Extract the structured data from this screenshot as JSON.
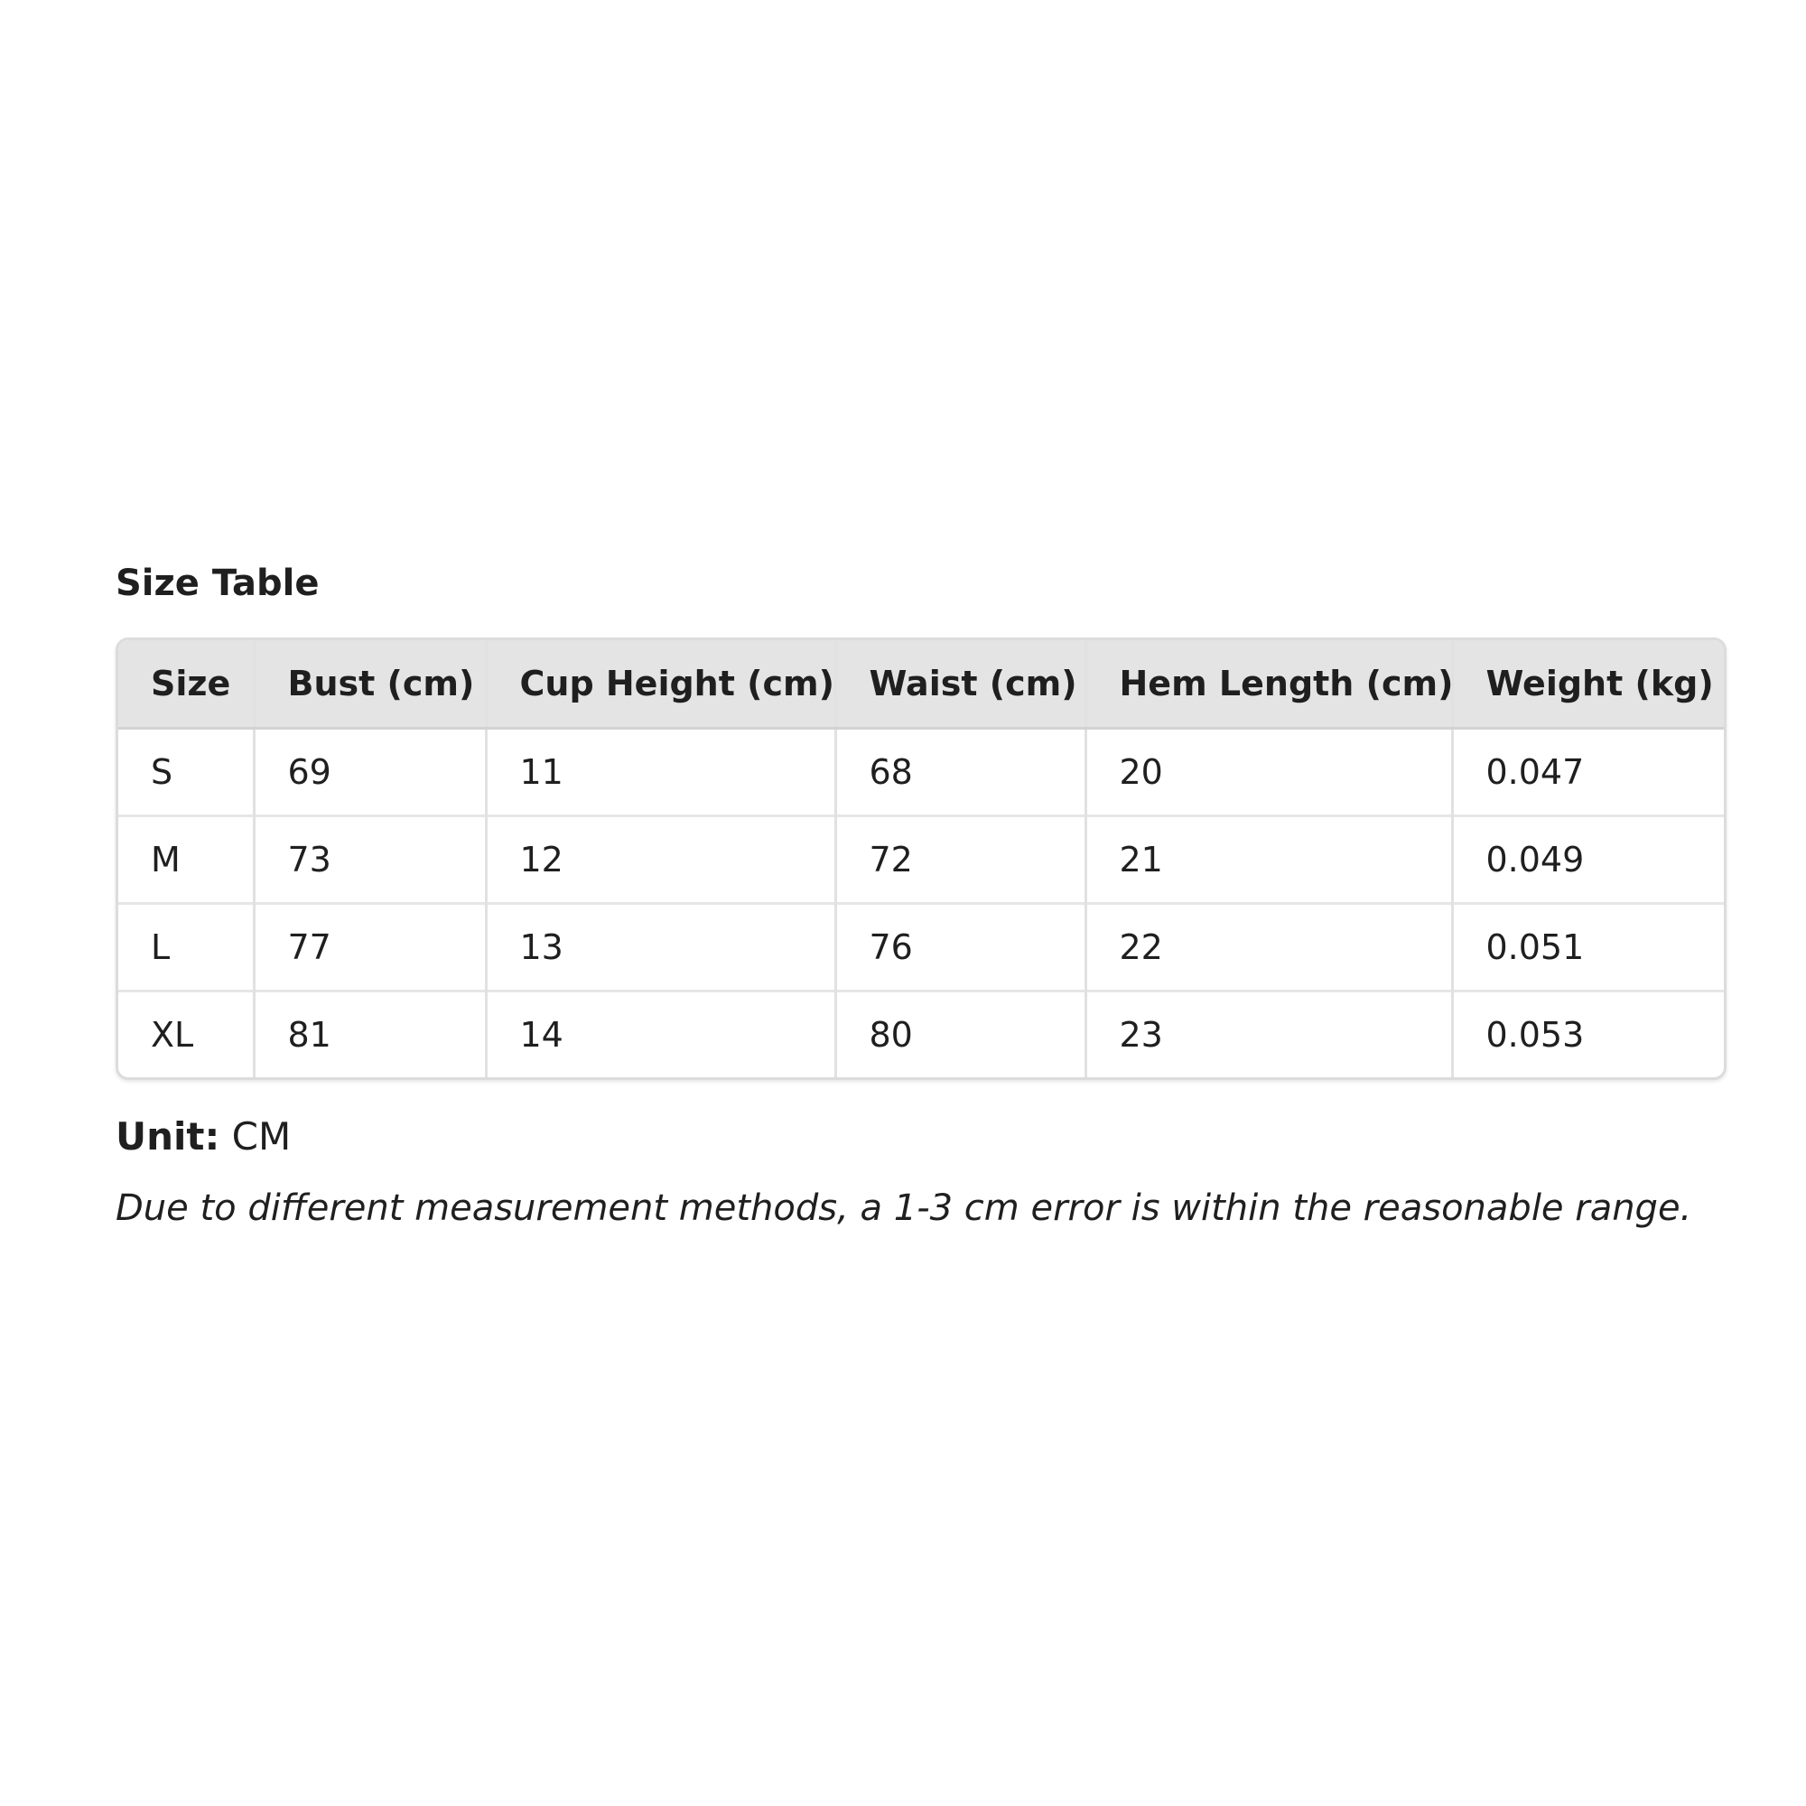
{
  "title": "Size Table",
  "table": {
    "headers": [
      "Size",
      "Bust (cm)",
      "Cup Height (cm)",
      "Waist (cm)",
      "Hem Length (cm)",
      "Weight (kg)"
    ],
    "rows": [
      [
        "S",
        "69",
        "11",
        "68",
        "20",
        "0.047"
      ],
      [
        "M",
        "73",
        "12",
        "72",
        "21",
        "0.049"
      ],
      [
        "L",
        "77",
        "13",
        "76",
        "22",
        "0.051"
      ],
      [
        "XL",
        "81",
        "14",
        "80",
        "23",
        "0.053"
      ]
    ]
  },
  "unit": {
    "label": "Unit:",
    "value": " CM"
  },
  "note": "Due to different measurement methods, a 1-3 cm error is within the reasonable range.",
  "colors": {
    "header_bg": "#e4e4e4",
    "border": "#dcdcdc",
    "text": "#1f1f1f"
  }
}
